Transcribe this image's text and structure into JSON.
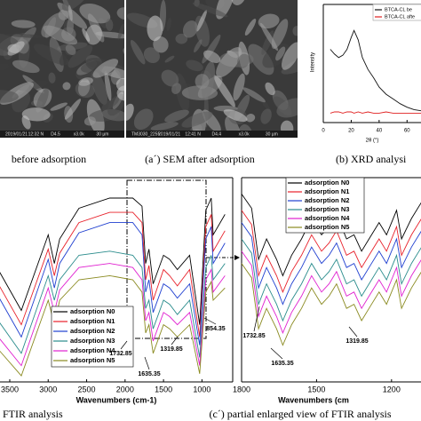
{
  "sem": [
    {
      "caption": "before adsorption",
      "footer": [
        "2019/01/21",
        "12:32 N",
        "D4.5",
        "x3.0k",
        "30 µm"
      ]
    },
    {
      "caption": "(a´) SEM after adsorption",
      "footer": [
        "TM3030_2255",
        "2019/01/21",
        "12:41 N",
        "D4.4",
        "x3.0k",
        "30 µm"
      ]
    }
  ],
  "chart_data": [
    {
      "type": "line",
      "caption": "(b) XRD analysi",
      "x_label": "2θ (°)",
      "y_label": "Intensity",
      "x": [
        5,
        8,
        11,
        14,
        17,
        20,
        22,
        25,
        28,
        32,
        36,
        40,
        45,
        50,
        55,
        60,
        65,
        70
      ],
      "series": [
        {
          "name": "BTCA-CL be",
          "color": "#111111",
          "values": [
            62,
            58,
            55,
            57,
            62,
            72,
            78,
            70,
            55,
            45,
            38,
            30,
            24,
            20,
            16,
            13,
            11,
            10
          ]
        },
        {
          "name": "BTCA-CL afte",
          "color": "#e02020",
          "values": [
            8,
            9,
            9,
            8,
            9,
            9,
            8,
            9,
            8,
            9,
            8,
            8,
            9,
            8,
            8,
            8,
            8,
            8
          ]
        }
      ],
      "xlim": [
        0,
        70
      ],
      "xticks": [
        0,
        20,
        40,
        60
      ],
      "ylim": [
        0,
        100
      ],
      "legend": "upper right"
    },
    {
      "type": "line",
      "caption": ") FTIR analysis",
      "x_label": "Wavenumbers (cm-1)",
      "x": [
        3650,
        3350,
        3000,
        2920,
        2850,
        2600,
        2200,
        1900,
        1780,
        1732,
        1690,
        1635,
        1500,
        1420,
        1320,
        1160,
        1030,
        950,
        880,
        854,
        700
      ],
      "series": [
        {
          "name": "adsorption N0",
          "color": "#000000",
          "values": [
            55,
            35,
            72,
            58,
            70,
            85,
            90,
            90,
            86,
            58,
            65,
            48,
            62,
            60,
            55,
            62,
            28,
            84,
            90,
            72,
            82
          ]
        },
        {
          "name": "adsorption N1",
          "color": "#e8202a",
          "values": [
            48,
            28,
            65,
            52,
            63,
            78,
            83,
            83,
            78,
            50,
            57,
            40,
            55,
            52,
            47,
            55,
            22,
            76,
            82,
            64,
            74
          ]
        },
        {
          "name": "adsorption N2",
          "color": "#1f3fd0",
          "values": [
            42,
            22,
            60,
            46,
            58,
            73,
            78,
            78,
            72,
            44,
            50,
            34,
            48,
            46,
            41,
            48,
            18,
            70,
            76,
            58,
            68
          ]
        },
        {
          "name": "adsorption N3",
          "color": "#2a8c8c",
          "values": [
            30,
            14,
            52,
            40,
            50,
            62,
            64,
            62,
            56,
            36,
            40,
            26,
            40,
            38,
            33,
            40,
            12,
            56,
            62,
            50,
            58
          ]
        },
        {
          "name": "adsorption N4",
          "color": "#e020d0",
          "values": [
            22,
            8,
            46,
            34,
            45,
            56,
            58,
            56,
            50,
            30,
            34,
            20,
            34,
            32,
            28,
            34,
            8,
            50,
            55,
            44,
            52
          ]
        },
        {
          "name": "adsorption N5",
          "color": "#8a8a20",
          "values": [
            16,
            3,
            40,
            28,
            40,
            50,
            52,
            50,
            44,
            24,
            28,
            14,
            28,
            26,
            22,
            28,
            4,
            44,
            49,
            40,
            46
          ]
        }
      ],
      "xlim": [
        3650,
        600
      ],
      "xticks": [
        3500,
        3000,
        2500,
        2000,
        1500,
        1000
      ],
      "ylim": [
        0,
        100
      ],
      "legend": "lower left",
      "annotations": [
        "1732.85",
        "1635.35",
        "1319.85",
        "854.35"
      ]
    },
    {
      "type": "line",
      "caption": "(c´) partial enlarged view of FTIR analysis",
      "x_label": "Wavenumbers (cm",
      "x": [
        1800,
        1760,
        1732,
        1700,
        1660,
        1635,
        1600,
        1560,
        1520,
        1480,
        1450,
        1420,
        1380,
        1350,
        1320,
        1290,
        1250,
        1220,
        1180,
        1160,
        1120,
        1080
      ],
      "series": [
        {
          "name": "adsorption N0",
          "color": "#000000",
          "values": [
            92,
            85,
            60,
            70,
            60,
            52,
            62,
            70,
            80,
            72,
            76,
            82,
            70,
            72,
            64,
            70,
            78,
            72,
            84,
            70,
            80,
            88
          ]
        },
        {
          "name": "adsorption N1",
          "color": "#e8202a",
          "values": [
            84,
            77,
            52,
            62,
            52,
            44,
            54,
            62,
            72,
            64,
            68,
            74,
            62,
            64,
            56,
            62,
            70,
            64,
            76,
            62,
            72,
            80
          ]
        },
        {
          "name": "adsorption N2",
          "color": "#1f3fd0",
          "values": [
            78,
            71,
            46,
            56,
            46,
            38,
            48,
            56,
            66,
            58,
            62,
            68,
            56,
            58,
            50,
            56,
            64,
            58,
            70,
            56,
            66,
            74
          ]
        },
        {
          "name": "adsorption N3",
          "color": "#2a8c8c",
          "values": [
            70,
            63,
            38,
            48,
            38,
            30,
            40,
            48,
            58,
            50,
            54,
            60,
            48,
            50,
            42,
            48,
            56,
            50,
            62,
            48,
            58,
            66
          ]
        },
        {
          "name": "adsorption N4",
          "color": "#e020d0",
          "values": [
            64,
            57,
            32,
            42,
            32,
            24,
            34,
            42,
            52,
            44,
            48,
            54,
            42,
            44,
            36,
            42,
            50,
            44,
            56,
            42,
            52,
            60
          ]
        },
        {
          "name": "adsorption N5",
          "color": "#8a8a20",
          "values": [
            58,
            51,
            26,
            36,
            26,
            18,
            28,
            36,
            46,
            38,
            42,
            48,
            36,
            38,
            30,
            36,
            44,
            38,
            50,
            36,
            46,
            54
          ]
        }
      ],
      "xlim": [
        1800,
        1075
      ],
      "xticks": [
        1800,
        1500,
        1200
      ],
      "ylim": [
        0,
        100
      ],
      "legend": "upper center",
      "annotations": [
        "1732.85",
        "1635.35",
        "1319.85"
      ]
    }
  ]
}
